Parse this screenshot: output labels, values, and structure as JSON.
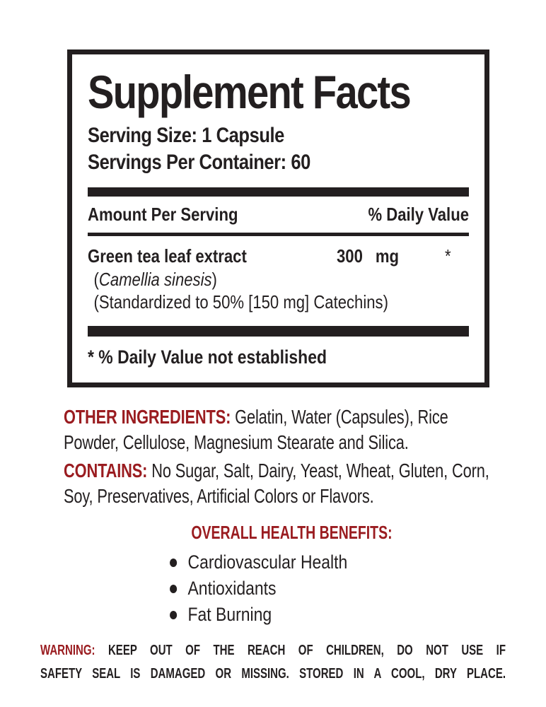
{
  "colors": {
    "text_black": "#231f20",
    "accent_red": "#9a1c20",
    "background": "#ffffff"
  },
  "panel": {
    "title": "Supplement Facts",
    "serving_size": "Serving Size: 1 Capsule",
    "servings_per_container": "Servings Per Container: 60",
    "columns": {
      "amount": "Amount Per Serving",
      "daily_value": "% Daily Value"
    },
    "rows": [
      {
        "name": "Green tea leaf extract",
        "amount": "300 mg",
        "daily_value": "*",
        "latin_open": "(",
        "latin_name": "Camellia sinesis",
        "latin_close": ")",
        "standardized": "(Standardized to 50% [150 mg] Catechins)"
      }
    ],
    "footnote": "* % Daily Value not established"
  },
  "other_ingredients": {
    "label": "OTHER INGREDIENTS",
    "colon": ":",
    "text": "Gelatin, Water (Capsules), Rice Powder, Cellulose, Magnesium Stearate and Silica."
  },
  "contains": {
    "label": "CONTAINS",
    "colon": ":",
    "text": "No Sugar, Salt, Dairy, Yeast, Wheat, Gluten, Corn, Soy, Preservatives, Artificial Colors or Flavors."
  },
  "benefits": {
    "heading": "OVERALL HEALTH BENEFITS:",
    "bullet_icon": "filled-circle-bullet",
    "items": [
      "Cardiovascular Health",
      "Antioxidants",
      "Fat Burning"
    ]
  },
  "warning": {
    "label": "WARNING:",
    "line1": "KEEP OUT OF THE REACH OF CHILDREN, DO NOT USE IF",
    "line2": "SAFETY SEAL IS DAMAGED OR MISSING. STORED IN A COOL, DRY PLACE."
  }
}
